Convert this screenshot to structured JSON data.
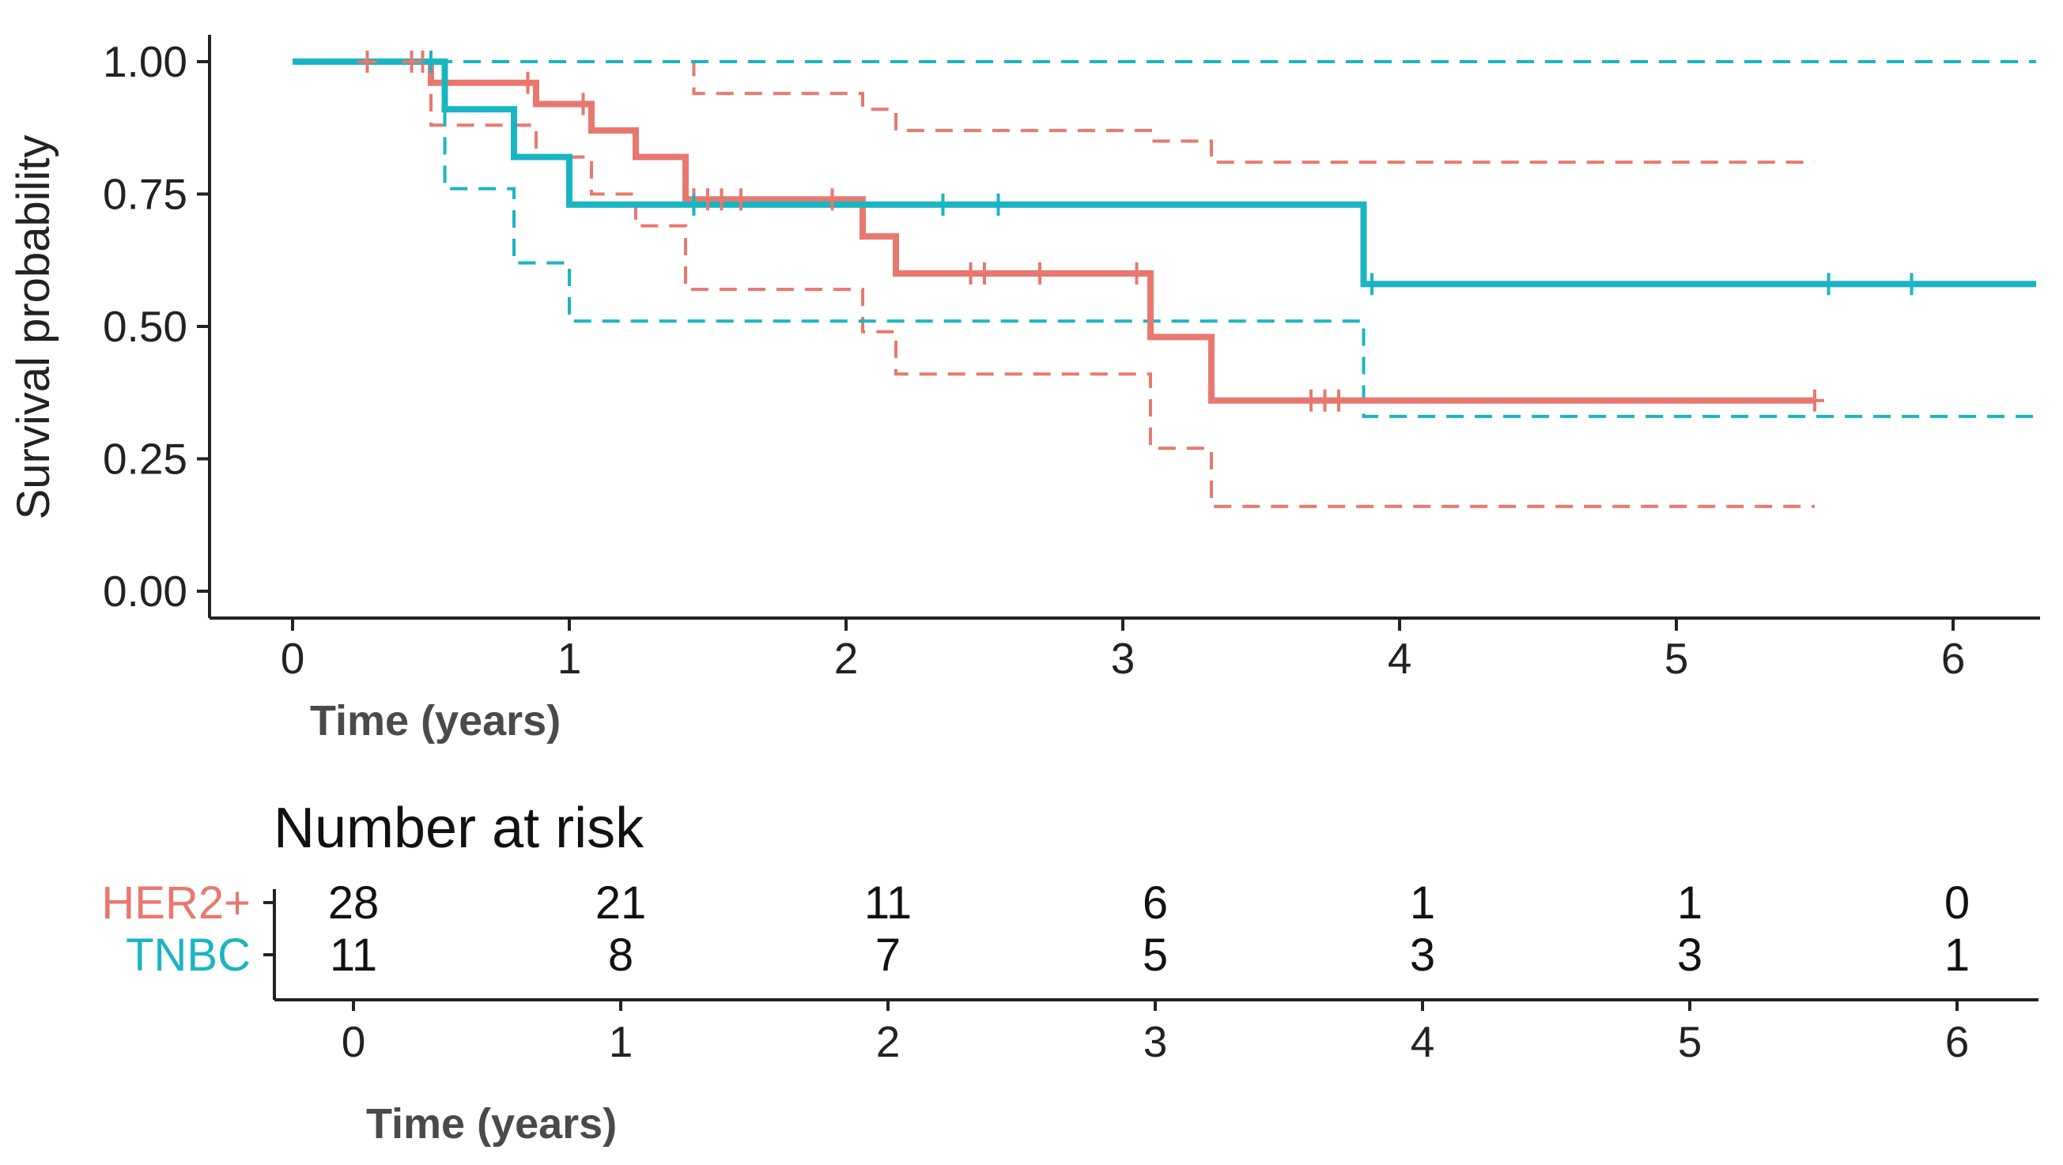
{
  "chart_data": {
    "type": "line",
    "subtype": "kaplan-meier",
    "title": "",
    "xlabel": "Time (years)",
    "ylabel": "Survival probability",
    "xlim": [
      0,
      6.3
    ],
    "ylim": [
      0,
      1
    ],
    "x_ticks": [
      "0",
      "1",
      "2",
      "3",
      "4",
      "5",
      "6"
    ],
    "y_ticks": [
      "0.00",
      "0.25",
      "0.50",
      "0.75",
      "1.00"
    ],
    "grid": false,
    "series": [
      {
        "name": "HER2+",
        "color": "#e8786e",
        "survival": [
          [
            0,
            1.0
          ],
          [
            0.5,
            0.96
          ],
          [
            0.88,
            0.92
          ],
          [
            1.08,
            0.87
          ],
          [
            1.24,
            0.82
          ],
          [
            1.42,
            0.74
          ],
          [
            2.06,
            0.67
          ],
          [
            2.18,
            0.6
          ],
          [
            3.1,
            0.48
          ],
          [
            3.32,
            0.36
          ],
          [
            5.5,
            0.36
          ]
        ],
        "upper_ci": [
          [
            0,
            1.0
          ],
          [
            0.5,
            1.0
          ],
          [
            1.42,
            1.0
          ],
          [
            1.45,
            0.94
          ],
          [
            2.06,
            0.91
          ],
          [
            2.18,
            0.87
          ],
          [
            3.1,
            0.85
          ],
          [
            3.32,
            0.81
          ],
          [
            5.5,
            0.81
          ]
        ],
        "lower_ci": [
          [
            0,
            1.0
          ],
          [
            0.5,
            0.88
          ],
          [
            0.88,
            0.82
          ],
          [
            1.08,
            0.75
          ],
          [
            1.24,
            0.69
          ],
          [
            1.42,
            0.57
          ],
          [
            2.06,
            0.49
          ],
          [
            2.18,
            0.41
          ],
          [
            3.1,
            0.27
          ],
          [
            3.32,
            0.16
          ],
          [
            5.5,
            0.16
          ]
        ],
        "censor_times": [
          0.27,
          0.43,
          0.47,
          0.85,
          1.05,
          1.45,
          1.5,
          1.55,
          1.62,
          1.95,
          2.45,
          2.5,
          2.7,
          3.05,
          3.68,
          3.73,
          3.78,
          5.5
        ],
        "risk_counts": [
          "28",
          "21",
          "11",
          "6",
          "1",
          "1",
          "0"
        ]
      },
      {
        "name": "TNBC",
        "color": "#1ab5c3",
        "survival": [
          [
            0,
            1.0
          ],
          [
            0.55,
            0.91
          ],
          [
            0.8,
            0.82
          ],
          [
            1.0,
            0.73
          ],
          [
            3.87,
            0.58
          ],
          [
            6.3,
            0.58
          ]
        ],
        "upper_ci": [
          [
            0,
            1.0
          ],
          [
            6.3,
            1.0
          ]
        ],
        "lower_ci": [
          [
            0,
            1.0
          ],
          [
            0.55,
            0.76
          ],
          [
            0.8,
            0.62
          ],
          [
            1.0,
            0.51
          ],
          [
            3.87,
            0.33
          ],
          [
            6.3,
            0.33
          ]
        ],
        "censor_times": [
          0.5,
          1.45,
          2.35,
          2.55,
          3.9,
          5.55,
          5.85
        ],
        "risk_counts": [
          "11",
          "8",
          "7",
          "5",
          "3",
          "3",
          "1"
        ]
      }
    ],
    "risk_table": {
      "title": "Number at risk",
      "xlabel": "Time (years)",
      "x_ticks": [
        "0",
        "1",
        "2",
        "3",
        "4",
        "5",
        "6"
      ]
    }
  }
}
